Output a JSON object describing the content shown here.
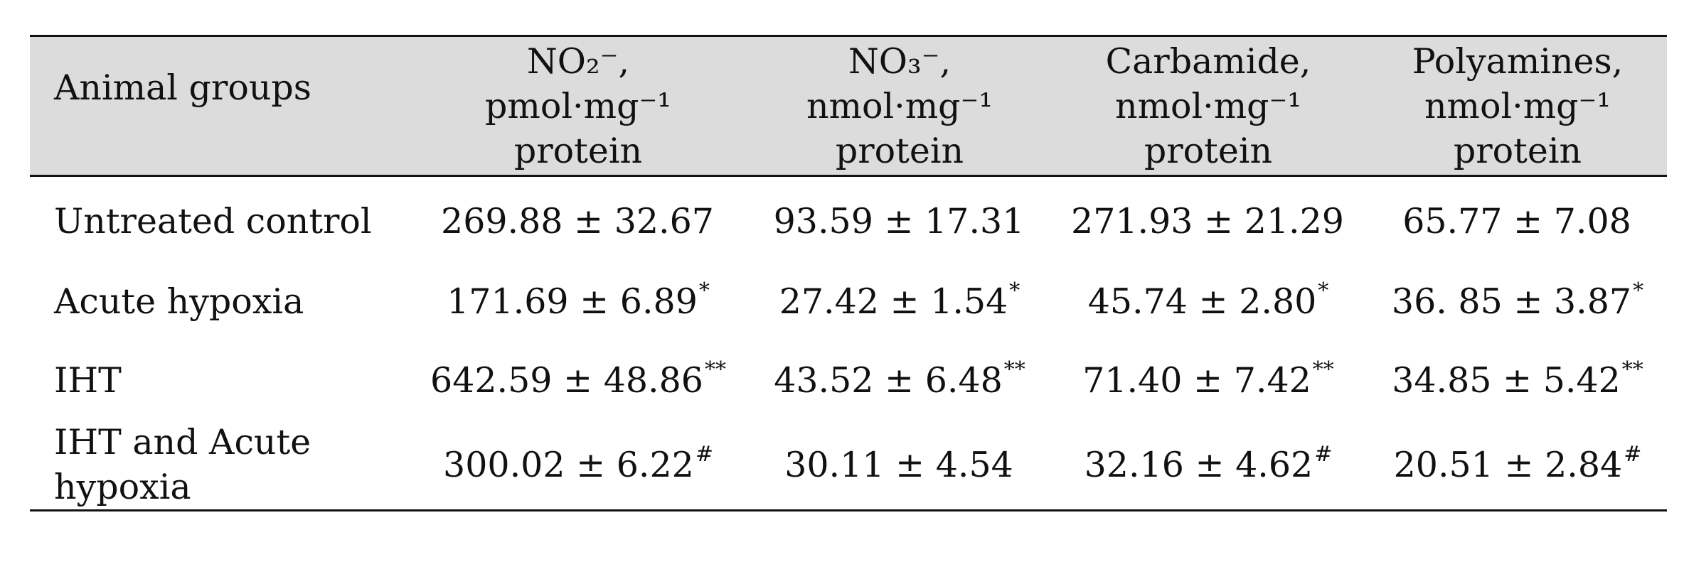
{
  "table": {
    "headers": [
      {
        "lines": [
          "Animal groups"
        ]
      },
      {
        "lines": [
          "NO₂⁻,",
          "pmol·mg⁻¹",
          "protein"
        ]
      },
      {
        "lines": [
          "NO₃⁻,",
          "nmol·mg⁻¹",
          "protein"
        ]
      },
      {
        "lines": [
          "Carbamide,",
          "nmol·mg⁻¹",
          "protein"
        ]
      },
      {
        "lines": [
          "Polyamines,",
          "nmol·mg⁻¹",
          "protein"
        ]
      }
    ],
    "rows": [
      {
        "group": "Untreated control",
        "cells": [
          {
            "value": "269.88 ± 32.67",
            "mark": ""
          },
          {
            "value": "93.59 ± 17.31",
            "mark": ""
          },
          {
            "value": "271.93 ± 21.29",
            "mark": ""
          },
          {
            "value": "65.77 ± 7.08",
            "mark": ""
          }
        ]
      },
      {
        "group": "Acute hypoxia",
        "cells": [
          {
            "value": "171.69 ± 6.89",
            "mark": "*"
          },
          {
            "value": "27.42 ± 1.54",
            "mark": "*"
          },
          {
            "value": "45.74 ± 2.80",
            "mark": "*"
          },
          {
            "value": "36. 85 ± 3.87",
            "mark": "*"
          }
        ]
      },
      {
        "group": "IHT",
        "cells": [
          {
            "value": "642.59 ± 48.86",
            "mark": "**"
          },
          {
            "value": "43.52 ± 6.48",
            "mark": "**"
          },
          {
            "value": "71.40 ± 7.42",
            "mark": "**"
          },
          {
            "value": "34.85 ± 5.42",
            "mark": "**"
          }
        ]
      },
      {
        "group": "IHT and Acute hypoxia",
        "cells": [
          {
            "value": "300.02 ± 6.22",
            "mark": "#"
          },
          {
            "value": "30.11 ± 4.54",
            "mark": ""
          },
          {
            "value": "32.16 ± 4.62",
            "mark": "#"
          },
          {
            "value": "20.51 ± 2.84",
            "mark": "#"
          }
        ]
      }
    ]
  }
}
